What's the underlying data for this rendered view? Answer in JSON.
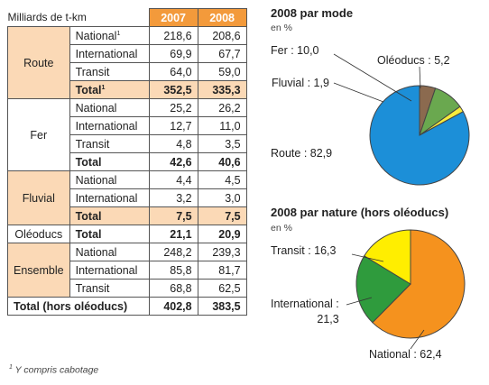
{
  "table": {
    "units_label": "Milliards de t-km",
    "years": [
      "2007",
      "2008"
    ],
    "groups": [
      {
        "mode": "Route",
        "shaded": true,
        "rows": [
          {
            "label": "National",
            "sup": "1",
            "v2007": "218,6",
            "v2008": "208,6",
            "total": false
          },
          {
            "label": "International",
            "sup": "",
            "v2007": "69,9",
            "v2008": "67,7",
            "total": false
          },
          {
            "label": "Transit",
            "sup": "",
            "v2007": "64,0",
            "v2008": "59,0",
            "total": false
          },
          {
            "label": "Total",
            "sup": "1",
            "v2007": "352,5",
            "v2008": "335,3",
            "total": true
          }
        ]
      },
      {
        "mode": "Fer",
        "shaded": false,
        "rows": [
          {
            "label": "National",
            "sup": "",
            "v2007": "25,2",
            "v2008": "26,2",
            "total": false
          },
          {
            "label": "International",
            "sup": "",
            "v2007": "12,7",
            "v2008": "11,0",
            "total": false
          },
          {
            "label": "Transit",
            "sup": "",
            "v2007": "4,8",
            "v2008": "3,5",
            "total": false
          },
          {
            "label": "Total",
            "sup": "",
            "v2007": "42,6",
            "v2008": "40,6",
            "total": true
          }
        ]
      },
      {
        "mode": "Fluvial",
        "shaded": true,
        "rows": [
          {
            "label": "National",
            "sup": "",
            "v2007": "4,4",
            "v2008": "4,5",
            "total": false
          },
          {
            "label": "International",
            "sup": "",
            "v2007": "3,2",
            "v2008": "3,0",
            "total": false
          },
          {
            "label": "Total",
            "sup": "",
            "v2007": "7,5",
            "v2008": "7,5",
            "total": true
          }
        ]
      },
      {
        "mode": "Oléoducs",
        "shaded": false,
        "rows": [
          {
            "label": "Total",
            "sup": "",
            "v2007": "21,1",
            "v2008": "20,9",
            "total": true
          }
        ]
      },
      {
        "mode": "Ensemble",
        "shaded": true,
        "rows": [
          {
            "label": "National",
            "sup": "",
            "v2007": "248,2",
            "v2008": "239,3",
            "total": false
          },
          {
            "label": "International",
            "sup": "",
            "v2007": "85,8",
            "v2008": "81,7",
            "total": false
          },
          {
            "label": "Transit",
            "sup": "",
            "v2007": "68,8",
            "v2008": "62,5",
            "total": false
          }
        ]
      }
    ],
    "grand_total": {
      "label": "Total (hors oléoducs)",
      "v2007": "402,8",
      "v2008": "383,5"
    },
    "footnote_mark": "1",
    "footnote": "Y compris cabotage"
  },
  "chart_data": [
    {
      "type": "pie",
      "title": "2008 par mode",
      "subtitle": "en %",
      "slices": [
        {
          "name": "Oléoducs",
          "value": 5.2,
          "label": "Oléoducs : 5,2",
          "color": "#8b6a4f"
        },
        {
          "name": "Fer",
          "value": 10.0,
          "label": "Fer : 10,0",
          "color": "#6aa84f"
        },
        {
          "name": "Fluvial",
          "value": 1.9,
          "label": "Fluvial : 1,9",
          "color": "#f7ec3c"
        },
        {
          "name": "Route",
          "value": 82.9,
          "label": "Route : 82,9",
          "color": "#1c8fd8"
        }
      ]
    },
    {
      "type": "pie",
      "title": "2008 par nature (hors oléoducs)",
      "subtitle": "en %",
      "slices": [
        {
          "name": "National",
          "value": 62.4,
          "label": "National : 62,4",
          "color": "#f5921e"
        },
        {
          "name": "International",
          "value": 21.3,
          "label": "International :\n21,3",
          "color": "#2f9b3d"
        },
        {
          "name": "Transit",
          "value": 16.3,
          "label": "Transit : 16,3",
          "color": "#ffee00"
        }
      ]
    }
  ]
}
